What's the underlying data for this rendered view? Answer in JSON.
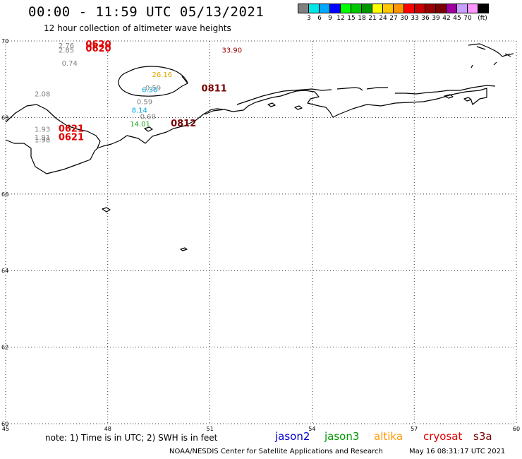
{
  "header": {
    "title": "00:00 - 11:59 UTC 05/13/2021",
    "subtitle": "12 hour collection of altimeter wave heights"
  },
  "legend": {
    "colors": [
      "#808080",
      "#00e5e5",
      "#00a8ff",
      "#0000ff",
      "#00ff00",
      "#00c800",
      "#009600",
      "#ffff00",
      "#ffc800",
      "#ff9600",
      "#ff0000",
      "#c80000",
      "#960000",
      "#7a0000",
      "#a000a0",
      "#c8a0ff",
      "#ff96ff",
      "#000000"
    ],
    "labels": [
      "3",
      "6",
      "9",
      "12",
      "15",
      "18",
      "21",
      "24",
      "27",
      "30",
      "33",
      "36",
      "39",
      "42",
      "45",
      "70",
      "(ft)"
    ]
  },
  "map": {
    "lon_range": [
      45,
      60
    ],
    "lat_range": [
      60,
      70
    ],
    "lon_ticks": [
      "45",
      "48",
      "51",
      "54",
      "57",
      "60"
    ],
    "lat_ticks": [
      "70",
      "68",
      "66",
      "64",
      "62",
      "60"
    ],
    "grid": "dotted"
  },
  "observations": [
    {
      "lon": 46.55,
      "lat": 69.82,
      "text": "2.76",
      "color": "#808080"
    },
    {
      "lon": 46.55,
      "lat": 69.7,
      "text": "2.85",
      "color": "#808080"
    },
    {
      "lon": 47.35,
      "lat": 69.83,
      "text": "0620",
      "color": "#e00000",
      "bold": true
    },
    {
      "lon": 47.35,
      "lat": 69.72,
      "text": "0620",
      "color": "#e00000",
      "bold": true
    },
    {
      "lon": 51.35,
      "lat": 69.7,
      "text": "33.90",
      "color": "#a00000"
    },
    {
      "lon": 46.65,
      "lat": 69.35,
      "text": "0.74",
      "color": "#808080"
    },
    {
      "lon": 49.3,
      "lat": 69.06,
      "text": "26.16",
      "color": "#e0a800"
    },
    {
      "lon": 49.1,
      "lat": 68.71,
      "text": "0.59",
      "color": "#808080"
    },
    {
      "lon": 49.0,
      "lat": 68.66,
      "text": "6.30",
      "color": "#00a8e0"
    },
    {
      "lon": 50.75,
      "lat": 68.68,
      "text": "0811",
      "color": "#7a0000",
      "bold": true
    },
    {
      "lon": 45.85,
      "lat": 68.55,
      "text": "2.08",
      "color": "#808080"
    },
    {
      "lon": 48.85,
      "lat": 68.35,
      "text": "0.59",
      "color": "#808080"
    },
    {
      "lon": 48.7,
      "lat": 68.13,
      "text": "8.14",
      "color": "#00a8e0"
    },
    {
      "lon": 48.95,
      "lat": 67.96,
      "text": "0.69",
      "color": "#808080"
    },
    {
      "lon": 48.65,
      "lat": 67.77,
      "text": "14.01",
      "color": "#22a822"
    },
    {
      "lon": 49.85,
      "lat": 67.77,
      "text": "0812",
      "color": "#7a0000",
      "bold": true
    },
    {
      "lon": 45.85,
      "lat": 67.63,
      "text": "1.93",
      "color": "#808080"
    },
    {
      "lon": 46.55,
      "lat": 67.63,
      "text": "0621",
      "color": "#e00000",
      "bold": true
    },
    {
      "lon": 45.85,
      "lat": 67.42,
      "text": "1.91",
      "color": "#808080"
    },
    {
      "lon": 45.85,
      "lat": 67.35,
      "text": "1.98",
      "color": "#808080"
    },
    {
      "lon": 46.55,
      "lat": 67.41,
      "text": "0621",
      "color": "#e00000",
      "bold": true
    }
  ],
  "footer": {
    "note": "note: 1) Time is in UTC; 2) SWH is in feet",
    "satellites": [
      {
        "name": "jason2",
        "color": "#0000cc"
      },
      {
        "name": "jason3",
        "color": "#009600"
      },
      {
        "name": "altika",
        "color": "#ff9600"
      },
      {
        "name": "cryosat",
        "color": "#e00000"
      },
      {
        "name": "s3a",
        "color": "#7a0000"
      }
    ],
    "credit": "NOAA/NESDIS Center for Satellite Applications and Research",
    "generated": "May 16 08:31:17 UTC 2021"
  }
}
